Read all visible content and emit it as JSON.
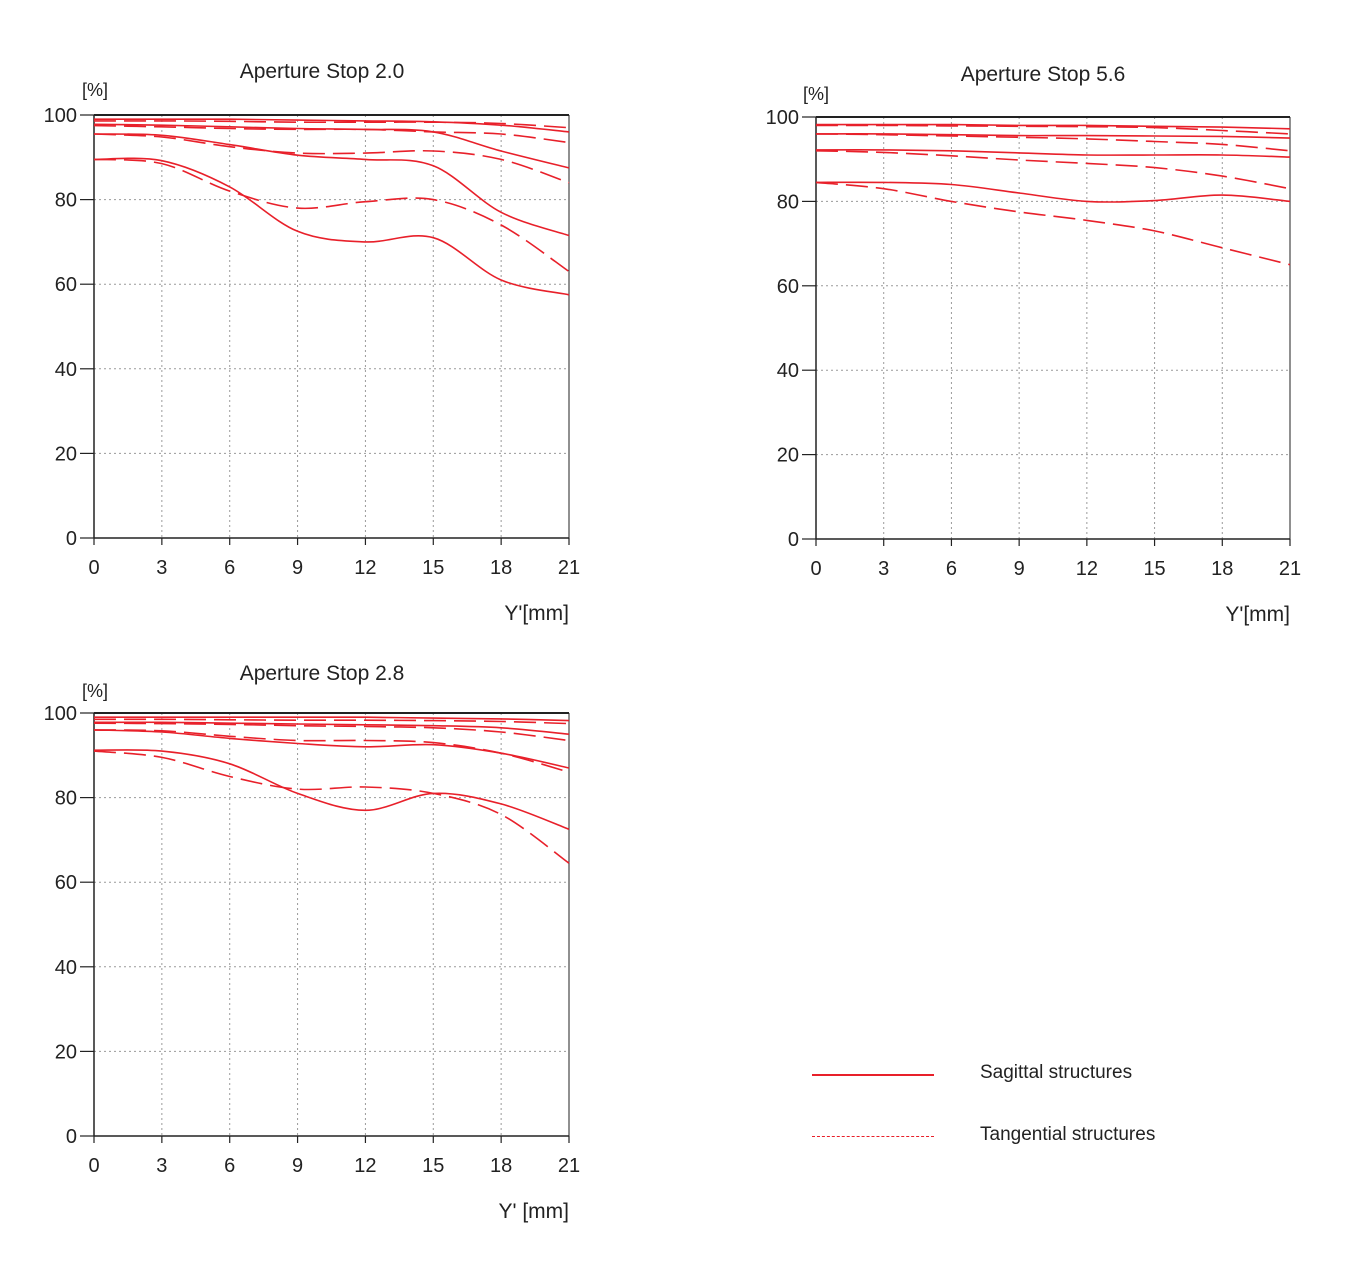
{
  "colors": {
    "curve": "#e8202a",
    "axis": "#222222",
    "grid": "#9a9a9a"
  },
  "legend": {
    "sagittal_label": "Sagittal structures",
    "tangential_label": "Tangential structures"
  },
  "chart_data": [
    {
      "type": "line",
      "title": "Aperture Stop 2.0",
      "ylabel": "[%]",
      "xlabel": "Y'[mm]",
      "xlim": [
        0,
        21
      ],
      "ylim": [
        0,
        100
      ],
      "xticks": [
        0,
        3,
        6,
        9,
        12,
        15,
        18,
        21
      ],
      "yticks": [
        0,
        20,
        40,
        60,
        80,
        100
      ],
      "grid": true,
      "series": [
        {
          "name": "Sagittal 1",
          "style": "solid",
          "x": [
            0,
            3,
            6,
            9,
            12,
            15,
            18,
            21
          ],
          "y": [
            99,
            99,
            99,
            98.8,
            98.6,
            98.4,
            97.6,
            96.0
          ]
        },
        {
          "name": "Tangential 1",
          "style": "dashed",
          "x": [
            0,
            3,
            6,
            9,
            12,
            15,
            18,
            21
          ],
          "y": [
            98.6,
            98.6,
            98.5,
            98.3,
            98.3,
            98.3,
            98.0,
            97.0
          ]
        },
        {
          "name": "Sagittal 2",
          "style": "solid",
          "x": [
            0,
            3,
            6,
            9,
            12,
            15,
            18,
            21
          ],
          "y": [
            97.8,
            97.6,
            97.2,
            96.8,
            96.6,
            96.0,
            91.5,
            87.5
          ]
        },
        {
          "name": "Tangential 2",
          "style": "dashed",
          "x": [
            0,
            3,
            6,
            9,
            12,
            15,
            18,
            21
          ],
          "y": [
            97.5,
            97.2,
            96.8,
            96.6,
            96.6,
            96.0,
            95.5,
            93.5
          ]
        },
        {
          "name": "Sagittal 3",
          "style": "solid",
          "x": [
            0,
            3,
            6,
            9,
            12,
            15,
            18,
            21
          ],
          "y": [
            95.5,
            95.2,
            93,
            90.5,
            89.5,
            88,
            77,
            71.5
          ]
        },
        {
          "name": "Tangential 3",
          "style": "dashed",
          "x": [
            0,
            3,
            6,
            9,
            12,
            15,
            18,
            21
          ],
          "y": [
            95.5,
            94.8,
            92.5,
            91,
            91,
            91.5,
            89.5,
            84
          ]
        },
        {
          "name": "Sagittal 4",
          "style": "solid",
          "x": [
            0,
            3,
            6,
            9,
            12,
            15,
            18,
            21
          ],
          "y": [
            89.5,
            89.2,
            83,
            72.5,
            70,
            71,
            61,
            57.5
          ]
        },
        {
          "name": "Tangential 4",
          "style": "dashed",
          "x": [
            0,
            3,
            6,
            9,
            12,
            15,
            18,
            21
          ],
          "y": [
            89.5,
            88.5,
            82,
            78,
            79.5,
            80,
            74,
            63
          ]
        }
      ]
    },
    {
      "type": "line",
      "title": "Aperture Stop 5.6",
      "ylabel": "[%]",
      "xlabel": "Y'[mm]",
      "xlim": [
        0,
        21
      ],
      "ylim": [
        0,
        100
      ],
      "xticks": [
        0,
        3,
        6,
        9,
        12,
        15,
        18,
        21
      ],
      "yticks": [
        0,
        20,
        40,
        60,
        80,
        100
      ],
      "grid": true,
      "series": [
        {
          "name": "Sagittal 1",
          "style": "solid",
          "x": [
            0,
            3,
            6,
            9,
            12,
            15,
            18,
            21
          ],
          "y": [
            98.2,
            98.2,
            98.2,
            98.0,
            98.0,
            97.8,
            97.6,
            97.2
          ]
        },
        {
          "name": "Tangential 1",
          "style": "dashed",
          "x": [
            0,
            3,
            6,
            9,
            12,
            15,
            18,
            21
          ],
          "y": [
            98.0,
            98.0,
            97.9,
            97.8,
            97.7,
            97.5,
            96.8,
            96.0
          ]
        },
        {
          "name": "Sagittal 2",
          "style": "solid",
          "x": [
            0,
            3,
            6,
            9,
            12,
            15,
            18,
            21
          ],
          "y": [
            96.0,
            96.0,
            95.8,
            95.6,
            95.6,
            95.5,
            95.4,
            95.0
          ]
        },
        {
          "name": "Tangential 2",
          "style": "dashed",
          "x": [
            0,
            3,
            6,
            9,
            12,
            15,
            18,
            21
          ],
          "y": [
            96.0,
            95.8,
            95.5,
            95.2,
            94.8,
            94.2,
            93.5,
            92.0
          ]
        },
        {
          "name": "Sagittal 3",
          "style": "solid",
          "x": [
            0,
            3,
            6,
            9,
            12,
            15,
            18,
            21
          ],
          "y": [
            92.2,
            92.2,
            92.0,
            91.5,
            91.0,
            91.0,
            91.0,
            90.5
          ]
        },
        {
          "name": "Tangential 3",
          "style": "dashed",
          "x": [
            0,
            3,
            6,
            9,
            12,
            15,
            18,
            21
          ],
          "y": [
            92.0,
            91.6,
            90.8,
            89.8,
            89.0,
            88.0,
            86.0,
            83.0
          ]
        },
        {
          "name": "Sagittal 4",
          "style": "solid",
          "x": [
            0,
            3,
            6,
            9,
            12,
            15,
            18,
            21
          ],
          "y": [
            84.5,
            84.5,
            84.0,
            82.0,
            80.0,
            80.2,
            81.5,
            80.0
          ]
        },
        {
          "name": "Tangential 4",
          "style": "dashed",
          "x": [
            0,
            3,
            6,
            9,
            12,
            15,
            18,
            21
          ],
          "y": [
            84.5,
            83.0,
            80.0,
            77.5,
            75.5,
            73.0,
            69.0,
            65.0
          ]
        }
      ]
    },
    {
      "type": "line",
      "title": "Aperture Stop 2.8",
      "ylabel": "[%]",
      "xlabel": "Y' [mm]",
      "xlim": [
        0,
        21
      ],
      "ylim": [
        0,
        100
      ],
      "xticks": [
        0,
        3,
        6,
        9,
        12,
        15,
        18,
        21
      ],
      "yticks": [
        0,
        20,
        40,
        60,
        80,
        100
      ],
      "grid": true,
      "series": [
        {
          "name": "Sagittal 1",
          "style": "solid",
          "x": [
            0,
            3,
            6,
            9,
            12,
            15,
            18,
            21
          ],
          "y": [
            99,
            99,
            99,
            99,
            99,
            98.8,
            98.6,
            98.2
          ]
        },
        {
          "name": "Tangential 1",
          "style": "dashed",
          "x": [
            0,
            3,
            6,
            9,
            12,
            15,
            18,
            21
          ],
          "y": [
            98.5,
            98.5,
            98.4,
            98.3,
            98.3,
            98.2,
            98.0,
            97.5
          ]
        },
        {
          "name": "Sagittal 2",
          "style": "solid",
          "x": [
            0,
            3,
            6,
            9,
            12,
            15,
            18,
            21
          ],
          "y": [
            97.8,
            97.8,
            97.6,
            97.4,
            97.2,
            97.0,
            96.5,
            95.0
          ]
        },
        {
          "name": "Tangential 2",
          "style": "dashed",
          "x": [
            0,
            3,
            6,
            9,
            12,
            15,
            18,
            21
          ],
          "y": [
            97.6,
            97.5,
            97.3,
            97.0,
            96.8,
            96.5,
            95.5,
            93.5
          ]
        },
        {
          "name": "Sagittal 3",
          "style": "solid",
          "x": [
            0,
            3,
            6,
            9,
            12,
            15,
            18,
            21
          ],
          "y": [
            96.0,
            95.5,
            94.0,
            92.8,
            92.0,
            92.5,
            90.5,
            87.0
          ]
        },
        {
          "name": "Tangential 3",
          "style": "dashed",
          "x": [
            0,
            3,
            6,
            9,
            12,
            15,
            18,
            21
          ],
          "y": [
            96.0,
            95.8,
            94.5,
            93.5,
            93.5,
            93.0,
            90.5,
            86.0
          ]
        },
        {
          "name": "Sagittal 4",
          "style": "solid",
          "x": [
            0,
            3,
            6,
            9,
            12,
            15,
            18,
            21
          ],
          "y": [
            91.2,
            91.0,
            88.0,
            81.0,
            77.0,
            81.0,
            78.5,
            72.5
          ]
        },
        {
          "name": "Tangential 4",
          "style": "dashed",
          "x": [
            0,
            3,
            6,
            9,
            12,
            15,
            18,
            21
          ],
          "y": [
            91.0,
            89.5,
            85.0,
            82.0,
            82.5,
            81.0,
            76.0,
            64.5
          ]
        }
      ]
    }
  ]
}
